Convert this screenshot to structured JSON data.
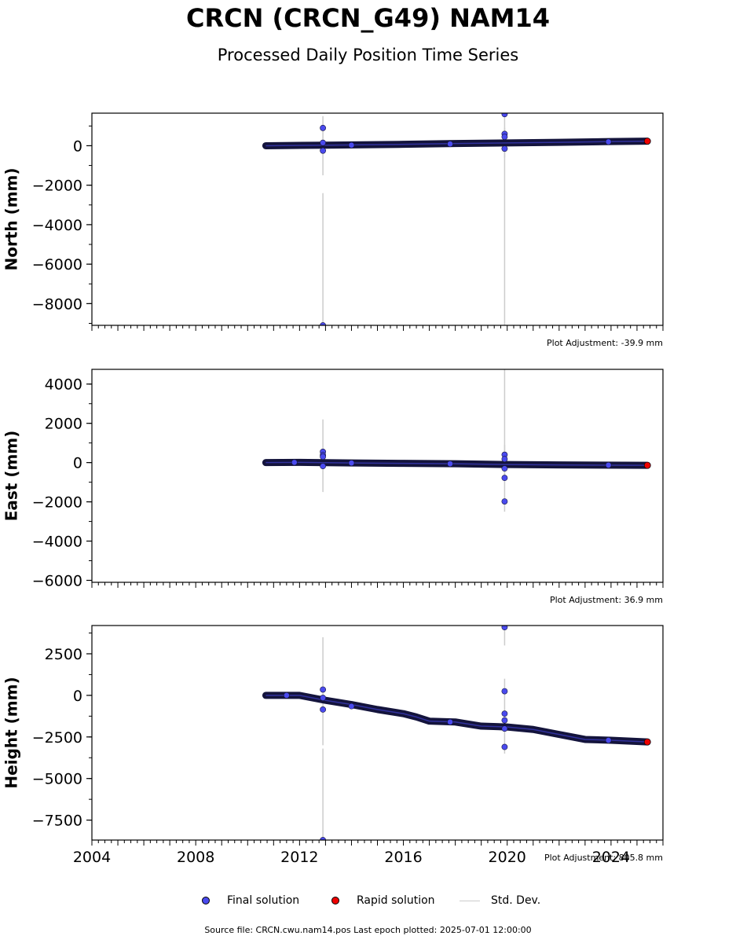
{
  "title": "CRCN (CRCN_G49) NAM14",
  "subtitle": "Processed Daily Position Time Series",
  "source_note": "Source file: CRCN.cwu.nam14.pos  Last epoch plotted: 2025-07-01 12:00:00",
  "legend": {
    "final": "Final solution",
    "rapid": "Rapid solution",
    "std": "Std. Dev."
  },
  "colors": {
    "final": "#4a4aee",
    "rapid": "#ee0000",
    "std": "#cccccc",
    "dark": "#14143c"
  },
  "chart_data": [
    {
      "type": "scatter",
      "ylabel": "North (mm)",
      "adjustment": "Plot Adjustment: -39.9 mm",
      "xlim": [
        2004,
        2026
      ],
      "ylim": [
        -9100,
        1650
      ],
      "yticks": [
        0,
        -2000,
        -4000,
        -6000,
        -8000
      ],
      "ytick_labels": [
        "0",
        "−2000",
        "−4000",
        "−6000",
        "−8000"
      ],
      "xticks": [],
      "xtick_labels": [],
      "trend": [
        [
          2010.7,
          0
        ],
        [
          2013,
          30
        ],
        [
          2016,
          70
        ],
        [
          2018,
          110
        ],
        [
          2020,
          140
        ],
        [
          2022,
          170
        ],
        [
          2024,
          210
        ],
        [
          2025.4,
          230
        ]
      ],
      "outliers": [
        [
          2012.9,
          900
        ],
        [
          2012.9,
          150
        ],
        [
          2012.9,
          -250
        ],
        [
          2012.9,
          -9100
        ],
        [
          2019.9,
          1600
        ],
        [
          2019.9,
          600
        ],
        [
          2019.9,
          450
        ],
        [
          2019.9,
          -150
        ],
        [
          2014.0,
          30
        ],
        [
          2017.8,
          90
        ],
        [
          2023.9,
          200
        ]
      ],
      "std_bars": [
        [
          2012.9,
          -1500,
          1500
        ],
        [
          2012.9,
          -9100,
          -2400
        ],
        [
          2019.9,
          -9100,
          1600
        ],
        [
          2019.9,
          -600,
          900
        ]
      ],
      "rapid": [
        [
          2025.4,
          230
        ]
      ]
    },
    {
      "type": "scatter",
      "ylabel": "East (mm)",
      "adjustment": "Plot Adjustment: 36.9 mm",
      "xlim": [
        2004,
        2026
      ],
      "ylim": [
        -6100,
        4750
      ],
      "yticks": [
        4000,
        2000,
        0,
        -2000,
        -4000,
        -6000
      ],
      "ytick_labels": [
        "4000",
        "2000",
        "0",
        "−2000",
        "−4000",
        "−6000"
      ],
      "xticks": [],
      "xtick_labels": [],
      "trend": [
        [
          2010.7,
          0
        ],
        [
          2012,
          10
        ],
        [
          2014,
          -20
        ],
        [
          2016,
          -40
        ],
        [
          2018,
          -60
        ],
        [
          2020,
          -100
        ],
        [
          2022,
          -120
        ],
        [
          2025.4,
          -140
        ]
      ],
      "outliers": [
        [
          2012.9,
          550
        ],
        [
          2012.9,
          380
        ],
        [
          2012.9,
          300
        ],
        [
          2012.9,
          -180
        ],
        [
          2019.9,
          400
        ],
        [
          2019.9,
          180
        ],
        [
          2019.9,
          -300
        ],
        [
          2019.9,
          -780
        ],
        [
          2019.9,
          -1980
        ],
        [
          2011.8,
          10
        ],
        [
          2014.0,
          -20
        ],
        [
          2017.8,
          -60
        ],
        [
          2023.9,
          -130
        ]
      ],
      "std_bars": [
        [
          2012.9,
          -1500,
          2200
        ],
        [
          2019.9,
          -2500,
          4750
        ],
        [
          2019.9,
          -600,
          900
        ]
      ],
      "rapid": [
        [
          2025.4,
          -140
        ]
      ]
    },
    {
      "type": "scatter",
      "ylabel": "Height (mm)",
      "adjustment": "Plot Adjustment: 805.8 mm",
      "xlim": [
        2004,
        2026
      ],
      "ylim": [
        -8700,
        4200
      ],
      "yticks": [
        2500,
        0,
        -2500,
        -5000,
        -7500
      ],
      "ytick_labels": [
        "2500",
        "0",
        "−2500",
        "−5000",
        "−7500"
      ],
      "xticks": [
        2004,
        2008,
        2012,
        2016,
        2020,
        2024
      ],
      "xtick_labels": [
        "2004",
        "2008",
        "2012",
        "2016",
        "2020",
        "2024"
      ],
      "trend": [
        [
          2010.7,
          0
        ],
        [
          2012.0,
          0
        ],
        [
          2013.0,
          -300
        ],
        [
          2014.0,
          -550
        ],
        [
          2015.0,
          -850
        ],
        [
          2016.0,
          -1100
        ],
        [
          2016.5,
          -1300
        ],
        [
          2017.0,
          -1550
        ],
        [
          2018.0,
          -1600
        ],
        [
          2019.0,
          -1850
        ],
        [
          2020.0,
          -1900
        ],
        [
          2021.0,
          -2050
        ],
        [
          2022.0,
          -2350
        ],
        [
          2023.0,
          -2650
        ],
        [
          2024.0,
          -2700
        ],
        [
          2025.4,
          -2800
        ]
      ],
      "outliers": [
        [
          2012.9,
          350
        ],
        [
          2012.9,
          -150
        ],
        [
          2012.9,
          -850
        ],
        [
          2012.9,
          -8700
        ],
        [
          2019.9,
          4100
        ],
        [
          2019.9,
          250
        ],
        [
          2019.9,
          -1100
        ],
        [
          2019.9,
          -1500
        ],
        [
          2019.9,
          -2000
        ],
        [
          2019.9,
          -3100
        ],
        [
          2011.5,
          0
        ],
        [
          2014.0,
          -650
        ],
        [
          2017.8,
          -1600
        ],
        [
          2023.9,
          -2700
        ]
      ],
      "std_bars": [
        [
          2012.9,
          -3000,
          3500
        ],
        [
          2012.9,
          -8700,
          -3200
        ],
        [
          2019.9,
          3000,
          4200
        ],
        [
          2019.9,
          -3500,
          1000
        ]
      ],
      "rapid": [
        [
          2025.4,
          -2800
        ]
      ]
    }
  ]
}
